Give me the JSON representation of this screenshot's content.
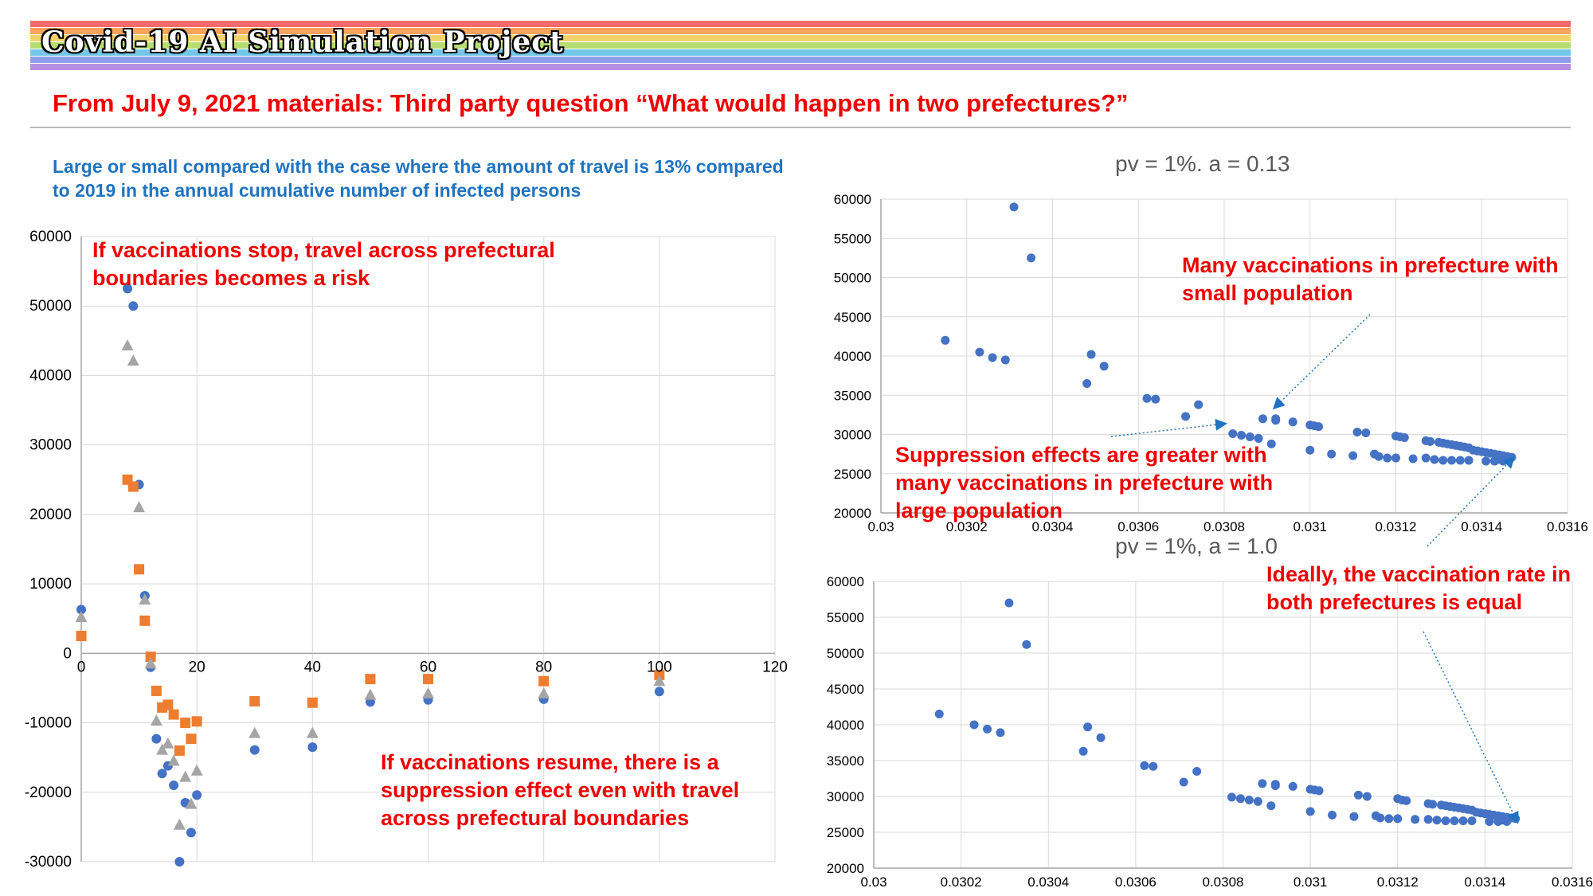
{
  "banner": {
    "title": "Covid-19 AI Simulation Project",
    "stripe_colors": [
      "#f26b6b",
      "#f7a35c",
      "#f2d36b",
      "#b7dd72",
      "#74c7e8",
      "#8e9ee6",
      "#b68fe0"
    ]
  },
  "headline": "From July 9, 2021 materials: Third party question “What would happen in two prefectures?”",
  "subtitle": "Large or small compared with the case where the amount of travel is 13% compared to 2019 in the annual cumulative number of infected persons",
  "annotations": {
    "stop": "If vaccinations stop, travel across prefectural boundaries becomes a risk",
    "resume": "If vaccinations resume, there is a suppression effect even with travel across prefectural boundaries",
    "small_pop": "Many vaccinations in prefecture with small population",
    "large_pop": "Suppression effects are greater with many vaccinations in prefecture with large population",
    "ideal": "Ideally, the vaccination rate in both prefectures is equal"
  },
  "chart_data": [
    {
      "type": "scatter",
      "title": "",
      "xlim": [
        0,
        120
      ],
      "ylim": [
        -30000,
        60000
      ],
      "x_ticks": [
        "0",
        "20",
        "40",
        "60",
        "80",
        "100",
        "120"
      ],
      "y_ticks": [
        "60000",
        "50000",
        "40000",
        "30000",
        "20000",
        "10000",
        "0",
        "-10000",
        "-20000",
        "-30000"
      ],
      "series": [
        {
          "marker": "circle",
          "color": "#4472c4",
          "x": [
            0,
            8,
            9,
            10,
            11,
            12,
            13,
            14,
            15,
            16,
            17,
            18,
            19,
            20,
            30,
            40,
            50,
            60,
            80,
            100
          ],
          "y": [
            6300,
            52500,
            50000,
            24300,
            8300,
            -2000,
            -12300,
            -17300,
            -16200,
            -19000,
            -30000,
            -21500,
            -25800,
            -20400,
            -13900,
            -13500,
            -7000,
            -6700,
            -6600,
            -5500
          ]
        },
        {
          "marker": "square",
          "color": "#ed7d31",
          "x": [
            0,
            8,
            9,
            10,
            11,
            12,
            13,
            14,
            15,
            16,
            17,
            18,
            19,
            20,
            30,
            40,
            50,
            60,
            80,
            100
          ],
          "y": [
            2500,
            25000,
            24000,
            12100,
            4700,
            -500,
            -5400,
            -7800,
            -7400,
            -8800,
            -14000,
            -10000,
            -12300,
            -9800,
            -6900,
            -7100,
            -3700,
            -3700,
            -4000,
            -3100
          ]
        },
        {
          "marker": "triangle",
          "color": "#a5a5a5",
          "x": [
            0,
            8,
            9,
            10,
            11,
            12,
            13,
            14,
            15,
            16,
            17,
            18,
            19,
            20,
            30,
            40,
            50,
            60,
            80,
            100
          ],
          "y": [
            5200,
            44300,
            42100,
            21000,
            7700,
            -1500,
            -9700,
            -13900,
            -13000,
            -15500,
            -24700,
            -17800,
            -21700,
            -16900,
            -11500,
            -11500,
            -6000,
            -5800,
            -5800,
            -4000
          ]
        }
      ]
    },
    {
      "type": "scatter",
      "title": "pv = 1%. a = 0.13",
      "xlim": [
        0.03,
        0.0316
      ],
      "ylim": [
        20000,
        60000
      ],
      "x_ticks": [
        "0.03",
        "0.0302",
        "0.0304",
        "0.0306",
        "0.0308",
        "0.031",
        "0.0312",
        "0.0314",
        "0.0316"
      ],
      "y_ticks": [
        "60000",
        "55000",
        "50000",
        "45000",
        "40000",
        "35000",
        "30000",
        "25000",
        "20000"
      ],
      "series": [
        {
          "marker": "circle",
          "color": "#4472c4",
          "x": [
            0.03031,
            0.03035,
            0.03015,
            0.03023,
            0.03026,
            0.03029,
            0.03049,
            0.03052,
            0.03048,
            0.03062,
            0.03064,
            0.03071,
            0.03074,
            0.03082,
            0.03084,
            0.03086,
            0.03088,
            0.03089,
            0.03091,
            0.03092,
            0.03096,
            0.031,
            0.03102,
            0.03111,
            0.03113,
            0.03115,
            0.0312,
            0.03121,
            0.03127,
            0.03128,
            0.0313,
            0.03131,
            0.03132,
            0.03133,
            0.03134,
            0.03135,
            0.03136,
            0.03137,
            0.03138,
            0.03139,
            0.0314,
            0.03141,
            0.03142,
            0.03143,
            0.03144,
            0.03145,
            0.03146,
            0.03147,
            0.031,
            0.03105,
            0.0311,
            0.03116,
            0.0312,
            0.03124,
            0.03129,
            0.03131,
            0.03133,
            0.03135,
            0.03137,
            0.03141,
            0.03143,
            0.03145,
            0.03092,
            0.03101,
            0.03122,
            0.03127,
            0.03118,
            0.03144
          ],
          "y": [
            59000,
            52500,
            42000,
            40500,
            39800,
            39500,
            40200,
            38700,
            36500,
            34600,
            34500,
            32300,
            33800,
            30100,
            29900,
            29700,
            29500,
            32000,
            28800,
            32000,
            31600,
            31200,
            31000,
            30300,
            30200,
            27500,
            29800,
            29700,
            29200,
            29100,
            29000,
            28900,
            28800,
            28700,
            28600,
            28500,
            28400,
            28300,
            28000,
            27900,
            27800,
            27700,
            27600,
            27500,
            27400,
            27300,
            27200,
            27100,
            28000,
            27500,
            27300,
            27200,
            27000,
            26900,
            26800,
            26700,
            26700,
            26700,
            26700,
            26600,
            26600,
            26600,
            31800,
            31100,
            29600,
            27000,
            27000,
            26800
          ]
        }
      ]
    },
    {
      "type": "scatter",
      "title": "pv = 1%, a = 1.0",
      "xlim": [
        0.03,
        0.0316
      ],
      "ylim": [
        20000,
        60000
      ],
      "x_ticks": [
        "0.03",
        "0.0302",
        "0.0304",
        "0.0306",
        "0.0308",
        "0.031",
        "0.0312",
        "0.0314",
        "0.0316"
      ],
      "y_ticks": [
        "60000",
        "55000",
        "50000",
        "45000",
        "40000",
        "35000",
        "30000",
        "25000",
        "20000"
      ],
      "series": [
        {
          "marker": "circle",
          "color": "#4472c4",
          "x": [
            0.03031,
            0.03035,
            0.03015,
            0.03023,
            0.03026,
            0.03029,
            0.03049,
            0.03052,
            0.03048,
            0.03062,
            0.03064,
            0.03071,
            0.03074,
            0.03082,
            0.03084,
            0.03086,
            0.03088,
            0.03089,
            0.03091,
            0.03092,
            0.03096,
            0.031,
            0.03102,
            0.03111,
            0.03113,
            0.03115,
            0.0312,
            0.03121,
            0.03127,
            0.03128,
            0.0313,
            0.03131,
            0.03132,
            0.03133,
            0.03134,
            0.03135,
            0.03136,
            0.03137,
            0.03138,
            0.03139,
            0.0314,
            0.03141,
            0.03142,
            0.03143,
            0.03144,
            0.03145,
            0.03146,
            0.03147,
            0.031,
            0.03105,
            0.0311,
            0.03116,
            0.0312,
            0.03124,
            0.03129,
            0.03131,
            0.03133,
            0.03135,
            0.03137,
            0.03141,
            0.03143,
            0.03145,
            0.03092,
            0.03101,
            0.03122,
            0.03127,
            0.03118,
            0.03144
          ],
          "y": [
            57000,
            51200,
            41500,
            40000,
            39400,
            38900,
            39700,
            38200,
            36300,
            34300,
            34200,
            32000,
            33500,
            29900,
            29700,
            29500,
            29300,
            31800,
            28700,
            31700,
            31400,
            31000,
            30800,
            30200,
            30000,
            27300,
            29700,
            29500,
            29000,
            28900,
            28800,
            28700,
            28600,
            28500,
            28400,
            28300,
            28200,
            28100,
            27800,
            27700,
            27600,
            27500,
            27400,
            27300,
            27200,
            27100,
            27000,
            26900,
            27900,
            27400,
            27200,
            27000,
            26900,
            26800,
            26700,
            26600,
            26600,
            26600,
            26600,
            26500,
            26500,
            26500,
            31500,
            30900,
            29400,
            26800,
            26900,
            26700
          ]
        }
      ]
    }
  ]
}
